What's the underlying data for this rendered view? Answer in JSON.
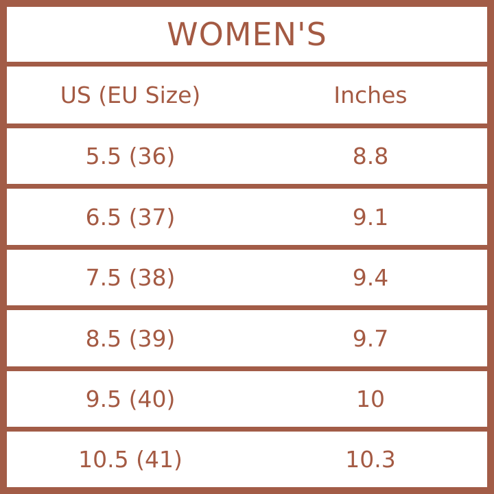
{
  "title": "WOMEN'S",
  "headers": [
    "US (EU Size)",
    "Inches"
  ],
  "rows": [
    [
      "5.5 (36)",
      "8.8"
    ],
    [
      "6.5 (37)",
      "9.1"
    ],
    [
      "7.5 (38)",
      "9.4"
    ],
    [
      "8.5 (39)",
      "9.7"
    ],
    [
      "9.5 (40)",
      "10"
    ],
    [
      "10.5 (41)",
      "10.3"
    ]
  ],
  "colors": {
    "border": "#a25c47",
    "text": "#a45a43",
    "background": "#ffffff"
  }
}
